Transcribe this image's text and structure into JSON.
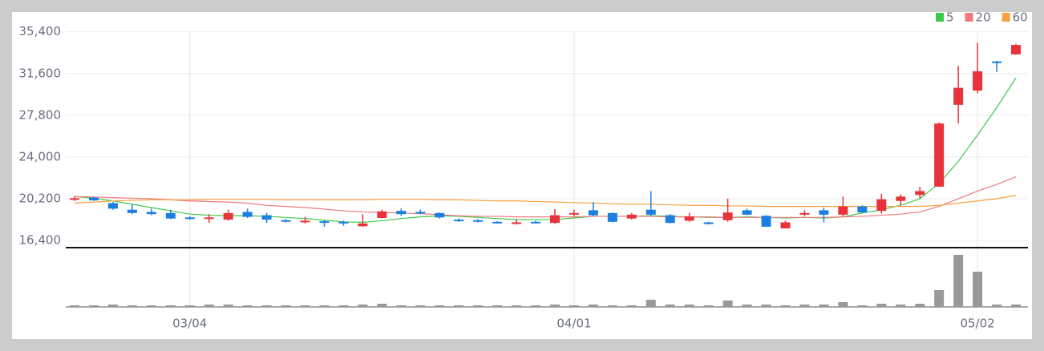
{
  "chart_data": {
    "type": "candlestick",
    "categories": [
      null,
      null,
      null,
      null,
      null,
      null,
      "03/04",
      null,
      null,
      null,
      null,
      null,
      null,
      null,
      null,
      null,
      null,
      null,
      null,
      null,
      null,
      null,
      null,
      null,
      null,
      null,
      "04/01",
      null,
      null,
      null,
      null,
      null,
      null,
      null,
      null,
      null,
      null,
      null,
      null,
      null,
      null,
      null,
      null,
      null,
      null,
      null,
      null,
      "05/02",
      null,
      null
    ],
    "open": [
      20150,
      20300,
      19800,
      19200,
      19000,
      18900,
      18500,
      18400,
      18300,
      19000,
      18700,
      18250,
      18100,
      18150,
      18100,
      17700,
      18450,
      19100,
      19000,
      18900,
      18300,
      18250,
      18100,
      17950,
      18100,
      18000,
      18800,
      19150,
      18900,
      18400,
      19200,
      18700,
      18200,
      18050,
      18250,
      19150,
      18650,
      17500,
      18750,
      19150,
      18750,
      19500,
      19100,
      20000,
      20550,
      21300,
      28750,
      30050,
      32700,
      33350
    ],
    "high": [
      20450,
      20350,
      19900,
      19700,
      19300,
      19200,
      18600,
      18800,
      19200,
      19300,
      18900,
      18350,
      18550,
      18250,
      18200,
      18800,
      19200,
      19300,
      19200,
      18950,
      18400,
      18350,
      18150,
      18350,
      18200,
      19250,
      19200,
      19900,
      18950,
      18900,
      20900,
      18800,
      18900,
      18100,
      20200,
      19300,
      18700,
      18200,
      19150,
      19400,
      20400,
      19600,
      20650,
      20600,
      21300,
      27150,
      32300,
      34400,
      32750,
      34300
    ],
    "low": [
      20000,
      20000,
      19200,
      18800,
      18700,
      18350,
      18300,
      18000,
      18200,
      18450,
      18000,
      18050,
      17950,
      17650,
      17750,
      17650,
      18400,
      18650,
      18800,
      18400,
      18100,
      18050,
      17950,
      17850,
      17950,
      17900,
      18600,
      18600,
      18050,
      18300,
      18650,
      17950,
      18100,
      17850,
      18100,
      18700,
      17650,
      17500,
      18600,
      18050,
      18600,
      18900,
      18850,
      19600,
      20250,
      21300,
      27050,
      29800,
      31750,
      33300
    ],
    "close": [
      20250,
      20050,
      19300,
      18900,
      18800,
      18400,
      18350,
      18500,
      18900,
      18550,
      18300,
      18150,
      18200,
      18050,
      17950,
      17950,
      19050,
      18800,
      18900,
      18500,
      18150,
      18150,
      18000,
      18050,
      18000,
      18700,
      18900,
      18700,
      18100,
      18750,
      18750,
      18000,
      18600,
      17900,
      18950,
      18750,
      17650,
      18050,
      18900,
      18750,
      19500,
      18950,
      20150,
      20400,
      20900,
      27050,
      30300,
      31800,
      32600,
      34200
    ],
    "up_color": "#e8333b",
    "down_color": "#1a7fe0",
    "series": [
      {
        "name": "5",
        "color": "#3fc94a",
        "values": [
          20400,
          20250,
          20000,
          19700,
          19400,
          19100,
          18800,
          18700,
          18650,
          18650,
          18600,
          18500,
          18400,
          18250,
          18100,
          18050,
          18200,
          18400,
          18550,
          18650,
          18600,
          18500,
          18400,
          18300,
          18300,
          18300,
          18450,
          18600,
          18600,
          18600,
          18650,
          18600,
          18550,
          18500,
          18500,
          18550,
          18500,
          18450,
          18500,
          18450,
          18550,
          18900,
          19200,
          19600,
          20200,
          21600,
          23600,
          26000,
          28500,
          31200
        ]
      },
      {
        "name": "20",
        "color": "#f07a80",
        "values": [
          20400,
          20350,
          20300,
          20250,
          20200,
          20100,
          20000,
          19950,
          19900,
          19800,
          19600,
          19500,
          19400,
          19250,
          19100,
          19000,
          18950,
          18900,
          18850,
          18750,
          18650,
          18600,
          18600,
          18550,
          18550,
          18550,
          18550,
          18600,
          18600,
          18600,
          18600,
          18550,
          18550,
          18550,
          18500,
          18500,
          18500,
          18500,
          18500,
          18500,
          18550,
          18600,
          18700,
          18800,
          19000,
          19500,
          20200,
          20900,
          21500,
          22200
        ]
      },
      {
        "name": "60",
        "color": "#f7a142",
        "values": [
          19800,
          19900,
          20000,
          20050,
          20100,
          20100,
          20100,
          20150,
          20150,
          20150,
          20150,
          20100,
          20100,
          20100,
          20100,
          20100,
          20150,
          20150,
          20150,
          20100,
          20100,
          20050,
          20000,
          20000,
          19950,
          19900,
          19850,
          19800,
          19750,
          19700,
          19700,
          19650,
          19600,
          19600,
          19550,
          19550,
          19500,
          19500,
          19500,
          19500,
          19500,
          19500,
          19500,
          19500,
          19500,
          19600,
          19800,
          20000,
          20200,
          20500
        ]
      }
    ],
    "ylim": [
      15750,
      37200
    ],
    "yticks": [
      {
        "value": 35400,
        "label": "35,400"
      },
      {
        "value": 31600,
        "label": "31,600"
      },
      {
        "value": 27800,
        "label": "27,800"
      },
      {
        "value": 24000,
        "label": "24,000"
      },
      {
        "value": 20200,
        "label": "20,200"
      },
      {
        "value": 16400,
        "label": "16,400"
      }
    ],
    "grid": true,
    "legend": "top-right",
    "volume": {
      "color": "#999999",
      "ylim": [
        0,
        70
      ],
      "values": [
        2,
        2,
        3,
        2,
        2,
        2,
        2,
        3,
        3,
        2,
        2,
        2,
        2,
        2,
        2,
        3,
        4,
        2,
        2,
        2,
        2,
        2,
        2,
        2,
        2,
        3,
        2,
        3,
        2,
        2,
        9,
        3,
        3,
        2,
        8,
        3,
        3,
        2,
        3,
        3,
        6,
        2,
        4,
        3,
        4,
        21,
        65,
        44,
        3,
        3
      ]
    }
  }
}
